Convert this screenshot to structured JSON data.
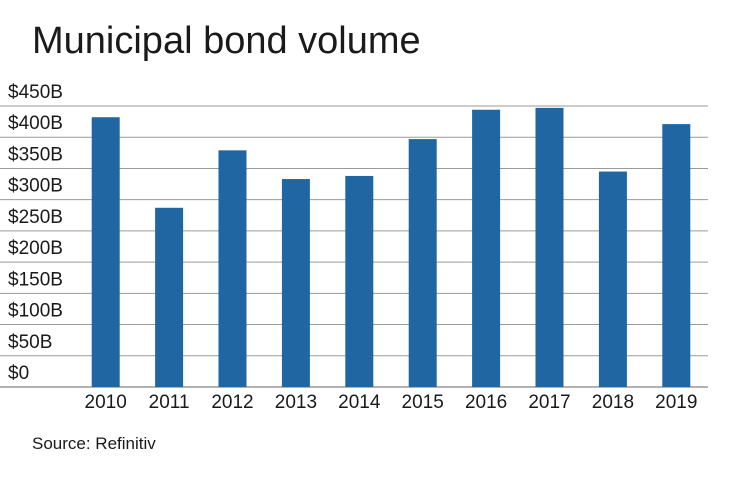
{
  "title": "Municipal bond volume",
  "source": "Source: Refinitiv",
  "chart_data": {
    "type": "bar",
    "title": "Municipal bond volume",
    "xlabel": "",
    "ylabel": "",
    "categories": [
      "2010",
      "2011",
      "2012",
      "2013",
      "2014",
      "2015",
      "2016",
      "2017",
      "2018",
      "2019"
    ],
    "values": [
      432,
      287,
      379,
      333,
      338,
      397,
      444,
      447,
      345,
      421
    ],
    "ylim": [
      0,
      450
    ],
    "y_ticks": [
      0,
      50,
      100,
      150,
      200,
      250,
      300,
      350,
      400,
      450
    ],
    "y_tick_labels": [
      "$0",
      "$50B",
      "$100B",
      "$150B",
      "$200B",
      "$250B",
      "$300B",
      "$350B",
      "$400B",
      "$450B"
    ],
    "grid": true,
    "legend": "none",
    "colors": {
      "bar": "#1f66a3",
      "grid": "#9a9a9a",
      "axis": "#666666"
    }
  }
}
